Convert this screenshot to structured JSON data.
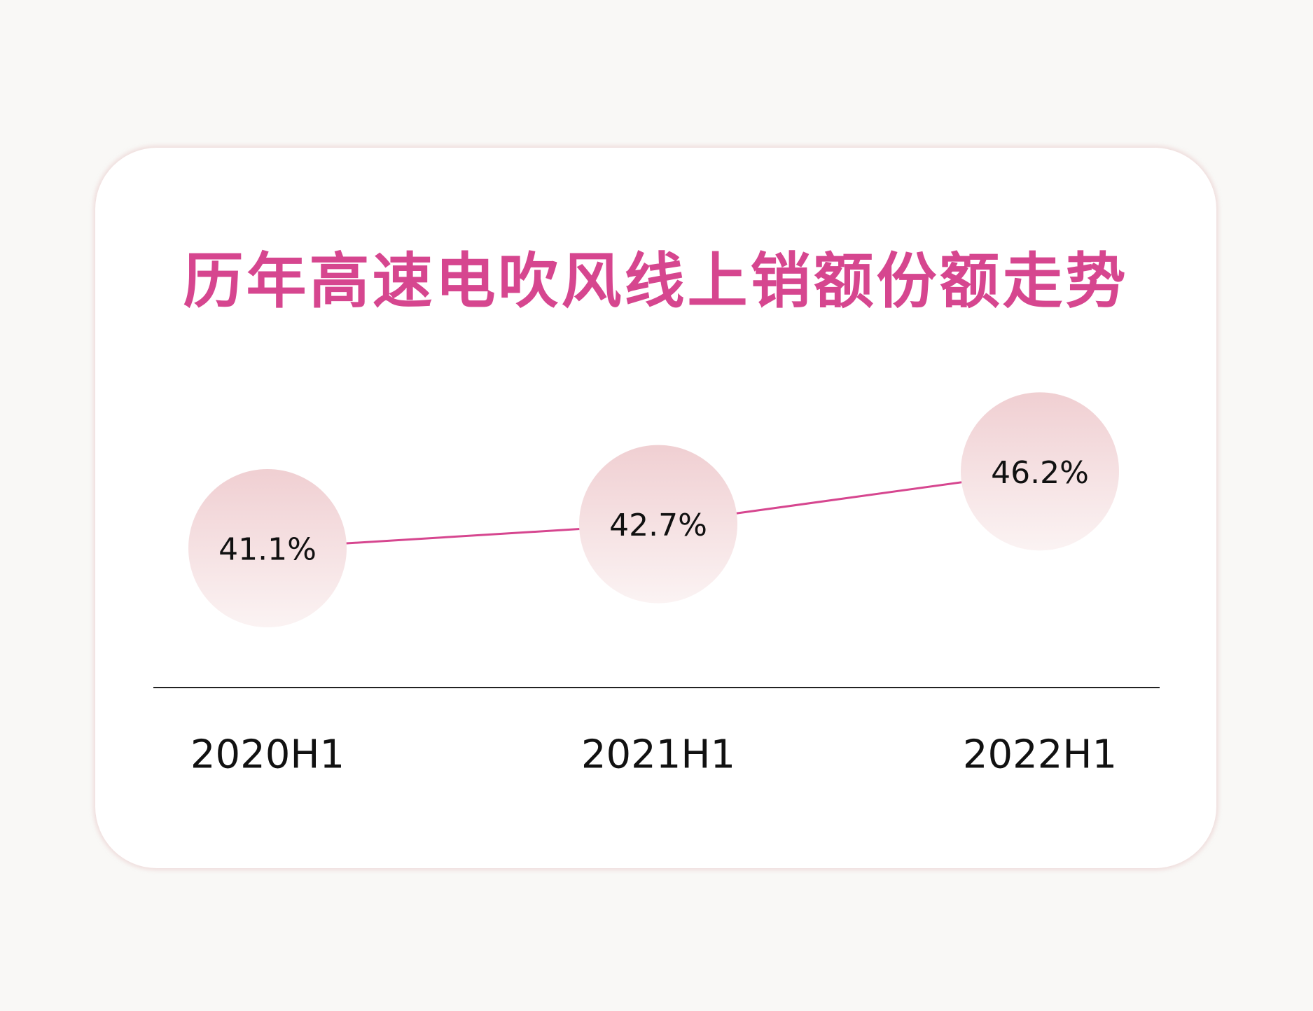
{
  "chart_data": {
    "type": "line",
    "title": "历年高速电吹风线上销额份额走势",
    "categories": [
      "2020H1",
      "2021H1",
      "2022H1"
    ],
    "values": [
      41.1,
      42.7,
      46.2
    ],
    "value_labels": [
      "41.1%",
      "42.7%",
      "46.2%"
    ],
    "xlabel": "",
    "ylabel": "",
    "unit": "%",
    "grid": false,
    "colors": {
      "title": "#d6468f",
      "line": "#d6468f",
      "bubble_top": "#f0cfd2",
      "bubble_bottom": "#fbf3f3",
      "axis": "#222222"
    }
  }
}
